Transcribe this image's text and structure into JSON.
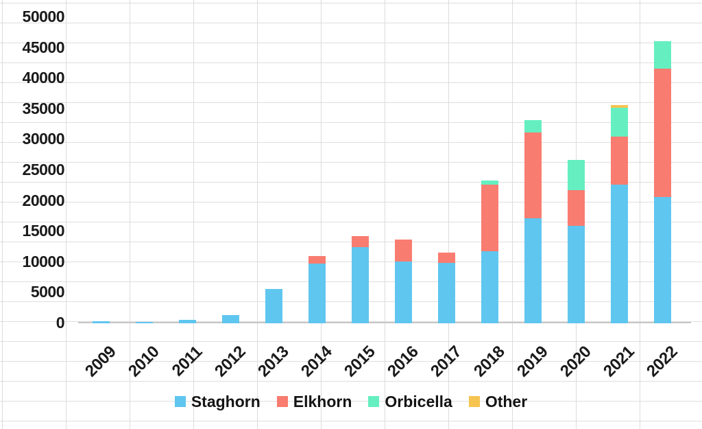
{
  "style": {
    "background": "#ffffff",
    "grid_color": "#dcdcdc",
    "axis_line_color": "#c7c7c7",
    "text_color": "#1a1a1a"
  },
  "chart_data": {
    "type": "bar",
    "stacked": true,
    "title": "",
    "xlabel": "",
    "ylabel": "",
    "categories": [
      "2009",
      "2010",
      "2011",
      "2012",
      "2013",
      "2014",
      "2015",
      "2016",
      "2017",
      "2018",
      "2019",
      "2020",
      "2021",
      "2022"
    ],
    "series": [
      {
        "name": "Staghorn",
        "color": "#5FC6EF",
        "values": [
          300,
          200,
          550,
          1400,
          5600,
          9700,
          12400,
          10100,
          9900,
          11800,
          17200,
          15900,
          22600,
          20600
        ]
      },
      {
        "name": "Elkhorn",
        "color": "#F97C70",
        "values": [
          0,
          0,
          0,
          0,
          0,
          1300,
          1800,
          3600,
          1600,
          10900,
          14000,
          5900,
          7900,
          21000
        ]
      },
      {
        "name": "Orbicella",
        "color": "#65EFC1",
        "values": [
          0,
          0,
          0,
          0,
          0,
          0,
          0,
          0,
          0,
          600,
          2000,
          4900,
          4700,
          4500
        ]
      },
      {
        "name": "Other",
        "color": "#F6C450",
        "values": [
          0,
          0,
          0,
          0,
          0,
          0,
          0,
          0,
          0,
          0,
          0,
          0,
          500,
          0
        ]
      }
    ],
    "ylim": [
      0,
      50000
    ],
    "yticks": [
      0,
      5000,
      10000,
      15000,
      20000,
      25000,
      30000,
      35000,
      40000,
      45000,
      50000
    ],
    "x_tick_rotation": 45,
    "legend_position": "bottom",
    "grid": "faint spreadsheet background grid only"
  }
}
